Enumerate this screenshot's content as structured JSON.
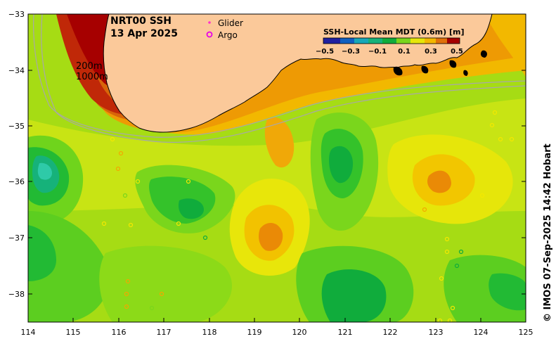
{
  "map": {
    "title_line1": "NRT00 SSH",
    "title_line2": "13 Apr 2025",
    "legend": {
      "glider": "Glider",
      "argo": "Argo",
      "glider_color": "#ff33cc",
      "argo_color": "#e600e6"
    },
    "colorbar": {
      "title": "SSH-Local Mean MDT (0.6m) [m]",
      "ticks": [
        "−0.5",
        "−0.3",
        "−0.1",
        "0.1",
        "0.3",
        "0.5"
      ]
    },
    "isobaths": [
      "200m",
      "1000m"
    ],
    "x_ticks": [
      "114",
      "115",
      "116",
      "117",
      "118",
      "119",
      "120",
      "121",
      "122",
      "123",
      "124",
      "125"
    ],
    "y_ticks": [
      "−33",
      "−34",
      "−35",
      "−36",
      "−37",
      "−38"
    ],
    "credit": "© IMOS 07-Sep-2025 14:42 Hobart",
    "colors": {
      "land": "#fbc99a",
      "coast": "#000000",
      "isobath": "#a8a8a8"
    }
  }
}
